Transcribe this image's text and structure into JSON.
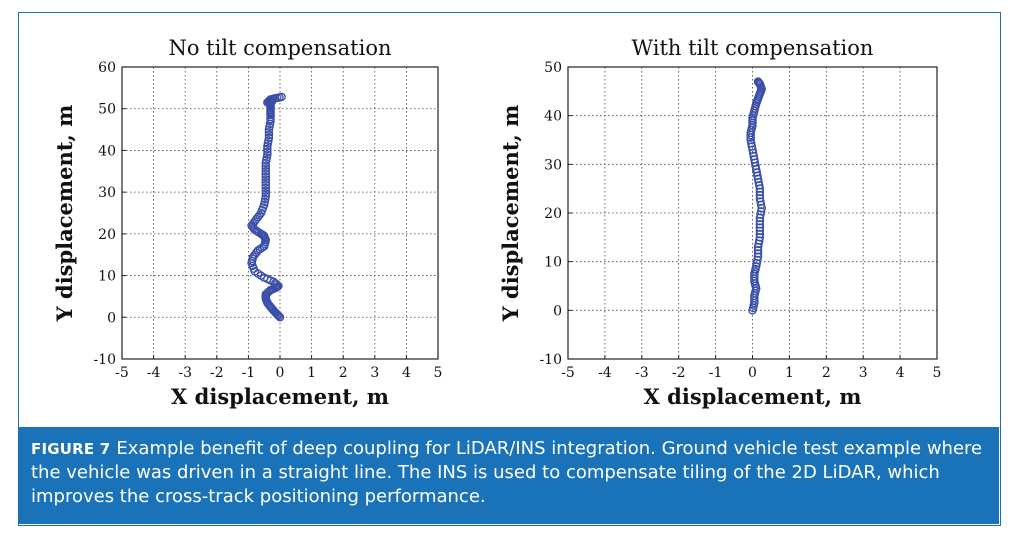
{
  "chart_data": [
    {
      "type": "scatter",
      "title": "No tilt compensation",
      "xlabel": "X displacement, m",
      "ylabel": "Y displacement, m",
      "xlim": [
        -5,
        5
      ],
      "ylim": [
        -10,
        60
      ],
      "xticks": [
        "-5",
        "-4",
        "-3",
        "-2",
        "-1",
        "0",
        "1",
        "2",
        "3",
        "4",
        "5"
      ],
      "yticks": [
        "-10",
        "0",
        "10",
        "20",
        "30",
        "40",
        "50",
        "60"
      ],
      "grid": true,
      "marker_color": "#3a4fa8",
      "series": [
        {
          "name": "trajectory",
          "x": [
            0.0,
            -0.1,
            -0.2,
            -0.3,
            -0.4,
            -0.45,
            -0.45,
            -0.3,
            -0.15,
            -0.05,
            -0.2,
            -0.5,
            -0.8,
            -0.9,
            -0.85,
            -0.7,
            -0.5,
            -0.45,
            -0.5,
            -0.6,
            -0.8,
            -0.9,
            -0.75,
            -0.6,
            -0.5,
            -0.45,
            -0.45,
            -0.45,
            -0.45,
            -0.45,
            -0.4,
            -0.4,
            -0.35,
            -0.35,
            -0.3,
            -0.3,
            -0.3,
            -0.3,
            -0.3,
            -0.25,
            -0.4,
            -0.3,
            -0.15,
            0.05
          ],
          "y": [
            0,
            0.8,
            1.6,
            2.5,
            3.5,
            4.5,
            5.5,
            6.5,
            7,
            7.5,
            8.5,
            9.5,
            11,
            13,
            14.5,
            16,
            17,
            18.5,
            19.5,
            20,
            21,
            22,
            23.5,
            25,
            27,
            29,
            31,
            33,
            35,
            37,
            39,
            41,
            43,
            45,
            47,
            48.5,
            49.5,
            50.5,
            51.2,
            51.8,
            51.5,
            52.2,
            52.5,
            52.8
          ]
        }
      ]
    },
    {
      "type": "scatter",
      "title": "With tilt compensation",
      "xlabel": "X displacement, m",
      "ylabel": "Y displacement, m",
      "xlim": [
        -5,
        5
      ],
      "ylim": [
        -10,
        50
      ],
      "xticks": [
        "-5",
        "-4",
        "-3",
        "-2",
        "-1",
        "0",
        "1",
        "2",
        "3",
        "4",
        "5"
      ],
      "yticks": [
        "-10",
        "0",
        "10",
        "20",
        "30",
        "40",
        "50"
      ],
      "grid": true,
      "marker_color": "#3a4fa8",
      "series": [
        {
          "name": "trajectory",
          "x": [
            0.0,
            0.05,
            0.05,
            0.1,
            0.05,
            0.05,
            0.1,
            0.15,
            0.15,
            0.2,
            0.2,
            0.2,
            0.25,
            0.2,
            0.2,
            0.15,
            0.1,
            0.05,
            0.0,
            -0.05,
            -0.05,
            0.0,
            0.0,
            0.05,
            0.1,
            0.15,
            0.2,
            0.25,
            0.2,
            0.15
          ],
          "y": [
            0,
            1.5,
            3,
            4.5,
            6,
            7.5,
            9,
            11,
            13,
            15,
            17,
            19,
            21,
            23,
            25,
            27,
            29,
            31,
            33,
            35,
            36.5,
            38,
            39.5,
            41,
            42.5,
            43.5,
            44.5,
            45.5,
            46.5,
            47
          ]
        }
      ]
    }
  ],
  "caption": {
    "figure_label": "FIGURE 7",
    "text": "Example benefit of deep coupling for LiDAR/INS integration. Ground vehicle test example where the vehicle was driven in a straight line. The INS is used to compensate tiling of the 2D LiDAR, which improves the cross-track positioning performance."
  }
}
